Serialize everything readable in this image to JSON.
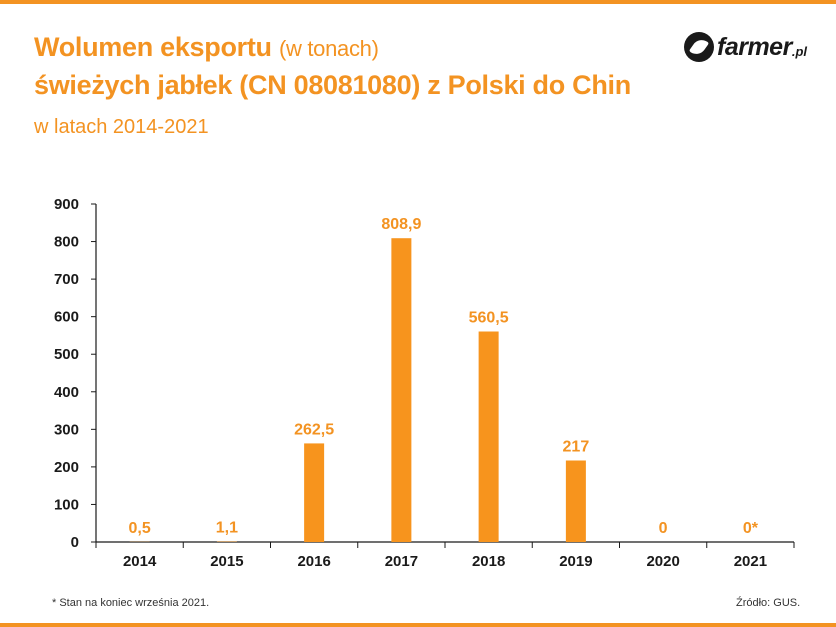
{
  "header": {
    "title": "Wolumen eksportu",
    "title_unit": "(w tonach)",
    "title_line2": "świeżych jabłek (CN 08081080) z Polski do Chin",
    "subtitle": "w latach 2014-2021"
  },
  "logo": {
    "name": "farmer",
    "tld": ".pl"
  },
  "colors": {
    "accent": "#f39322",
    "bar": "#f7941d",
    "text": "#1a1a1a"
  },
  "chart_data": {
    "type": "bar",
    "categories": [
      "2014",
      "2015",
      "2016",
      "2017",
      "2018",
      "2019",
      "2020",
      "2021"
    ],
    "values": [
      0.5,
      1.1,
      262.5,
      808.9,
      560.5,
      217,
      0,
      0
    ],
    "data_labels": [
      "0,5",
      "1,1",
      "262,5",
      "808,9",
      "560,5",
      "217",
      "0",
      "0*"
    ],
    "y_ticks": [
      0,
      100,
      200,
      300,
      400,
      500,
      600,
      700,
      800,
      900
    ],
    "ylim": [
      0,
      900
    ],
    "grid": false,
    "legend": "none"
  },
  "footnote": "* Stan na koniec września 2021.",
  "source": "Źródło: GUS."
}
